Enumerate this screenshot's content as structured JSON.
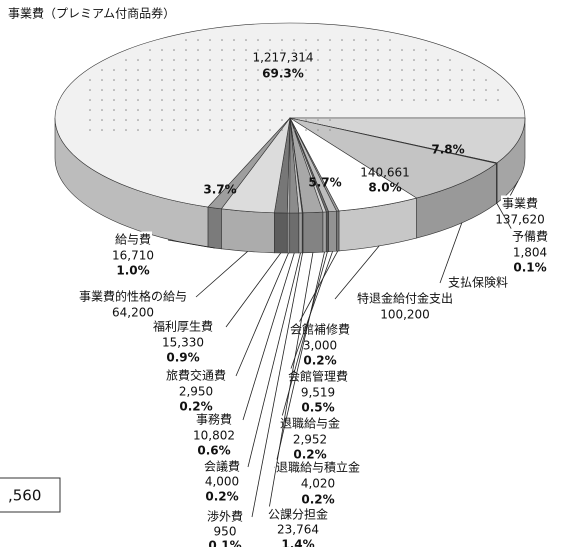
{
  "chart_data": {
    "type": "pie3d",
    "title": "事業費（プレミアム付商品券）",
    "categories": [
      null,
      "事業費",
      "予備費",
      "支払保険料",
      "特退金給付金支出",
      "会館補修費",
      "会館管理費",
      "退職給与金",
      "退職給与積立金",
      "公課分担金",
      "渉外費",
      "会議費",
      "事務費",
      "旅費交通費",
      "福利厚生費",
      "事業費的性格の給与",
      "給与費"
    ],
    "values": [
      1217314,
      137620,
      1804,
      140661,
      100200,
      3000,
      9519,
      2952,
      4020,
      23764,
      950,
      4000,
      10802,
      2950,
      15330,
      64200,
      16710
    ],
    "value_labels": [
      "1,217,314",
      "137,620",
      "1,804",
      "140,661",
      "100,200",
      "3,000",
      "9,519",
      "2,952",
      "4,020",
      "23,764",
      "950",
      "4,000",
      "10,802",
      "2,950",
      "15,330",
      "64,200",
      "16,710"
    ],
    "percent_labels": [
      "69.3%",
      "7.8%",
      "0.1%",
      "8.0%",
      "5.7%",
      "0.2%",
      "0.5%",
      "0.2%",
      "0.2%",
      "1.4%",
      "0.1%",
      "0.2%",
      "0.6%",
      "0.2%",
      "0.9%",
      "3.7%",
      "1.0%"
    ],
    "colors": [
      "#f1f1f1",
      "#d4d4d4",
      "#7a7a7a",
      "#c4c4c4",
      "#ffffff",
      "#9a9a9a",
      "#bdbdbd",
      "#6e6e6e",
      "#d0d0d0",
      "#a8a8a8",
      "#555555",
      "#c8c8c8",
      "#8c8c8c",
      "#b4b4b4",
      "#777777",
      "#dcdcdc",
      "#9e9e9e"
    ],
    "cropped_box_text": ",560"
  }
}
